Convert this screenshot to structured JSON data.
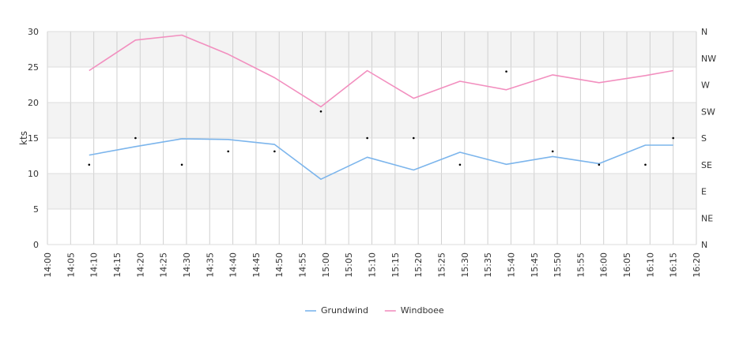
{
  "chart_data": {
    "type": "line",
    "ylabel": "kts",
    "ylim": [
      0,
      30
    ],
    "y_ticks": [
      "0",
      "5",
      "10",
      "15",
      "20",
      "25",
      "30"
    ],
    "y2_ticks": [
      "N",
      "NE",
      "E",
      "SE",
      "S",
      "SW",
      "W",
      "NW",
      "N"
    ],
    "x_ticks": [
      "14:00",
      "14:05",
      "14:10",
      "14:15",
      "14:20",
      "14:25",
      "14:30",
      "14:35",
      "14:40",
      "14:45",
      "14:50",
      "14:55",
      "15:00",
      "15:05",
      "15:10",
      "15:15",
      "15:20",
      "15:25",
      "15:30",
      "15:35",
      "15:40",
      "15:45",
      "15:50",
      "15:55",
      "16:00",
      "16:05",
      "16:10",
      "16:15",
      "16:20"
    ],
    "xlim": [
      "14:00",
      "16:20"
    ],
    "grid": true,
    "legend_position": "bottom",
    "series": [
      {
        "name": "Grundwind",
        "color": "#7cb5ec",
        "x": [
          "14:09",
          "14:19",
          "14:29",
          "14:39",
          "14:49",
          "14:59",
          "15:09",
          "15:19",
          "15:29",
          "15:39",
          "15:49",
          "15:59",
          "16:09",
          "16:15"
        ],
        "values": [
          12.6,
          13.8,
          14.9,
          14.8,
          14.1,
          9.2,
          12.3,
          10.5,
          13.0,
          11.3,
          12.4,
          11.4,
          14.0,
          14.0
        ]
      },
      {
        "name": "Windboee",
        "color": "#f28fbf",
        "x": [
          "14:09",
          "14:19",
          "14:29",
          "14:39",
          "14:49",
          "14:59",
          "15:09",
          "15:19",
          "15:29",
          "15:39",
          "15:49",
          "15:59",
          "16:09",
          "16:15"
        ],
        "values": [
          24.5,
          28.8,
          29.5,
          26.8,
          23.5,
          19.4,
          24.5,
          20.6,
          23.0,
          21.8,
          23.9,
          22.8,
          23.8,
          24.5
        ]
      }
    ],
    "direction_points": {
      "color": "#000000",
      "x": [
        "14:09",
        "14:19",
        "14:29",
        "14:39",
        "14:49",
        "14:59",
        "15:09",
        "15:19",
        "15:29",
        "15:39",
        "15:49",
        "15:59",
        "16:09",
        "16:15"
      ],
      "values": [
        "SE",
        "S",
        "SE",
        "SSE",
        "SSE",
        "SW",
        "S",
        "S",
        "SE",
        "WNW",
        "SSE",
        "SE",
        "SE",
        "S"
      ]
    }
  }
}
